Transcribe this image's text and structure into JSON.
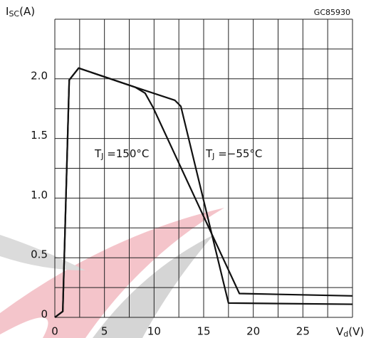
{
  "chart_data": {
    "type": "line",
    "code": "GC85930",
    "y_label": "I",
    "y_label_sub": "SC",
    "y_label_unit": "(A)",
    "x_label": "V",
    "x_label_sub": "d",
    "x_label_unit": "(V)",
    "xlim": [
      0,
      30
    ],
    "ylim": [
      0,
      2.5
    ],
    "xticks": [
      0,
      5,
      10,
      15,
      20,
      25
    ],
    "yticks": [
      0,
      0.5,
      {
        "value": 1,
        "label": "1.0"
      },
      1.5,
      {
        "value": 2,
        "label": "2.0"
      }
    ],
    "x_grid": [
      0,
      2.5,
      5,
      7.5,
      10,
      12.5,
      15,
      17.5,
      20,
      22.5,
      25,
      27.5,
      30
    ],
    "y_grid": [
      0,
      0.25,
      0.5,
      0.75,
      1,
      1.25,
      1.5,
      1.75,
      2,
      2.25,
      2.5
    ],
    "grid": true,
    "series": [
      {
        "name": "T",
        "name_sub": "J",
        "name_rest": " =150°C",
        "color": "#111111",
        "x": [
          0,
          0.8,
          1.45,
          2.4,
          8.1,
          9.1,
          9.9,
          18.6,
          30
        ],
        "values": [
          0,
          0.05,
          1.99,
          2.09,
          1.93,
          1.88,
          1.76,
          0.2,
          0.18
        ]
      },
      {
        "name": "T",
        "name_sub": "J",
        "name_rest": " =−55°C",
        "color": "#111111",
        "x": [
          0,
          0.8,
          1.45,
          2.4,
          8.1,
          12.1,
          12.7,
          17.5,
          30
        ],
        "values": [
          0,
          0.05,
          1.99,
          2.09,
          1.93,
          1.82,
          1.77,
          0.12,
          0.11
        ]
      }
    ]
  }
}
